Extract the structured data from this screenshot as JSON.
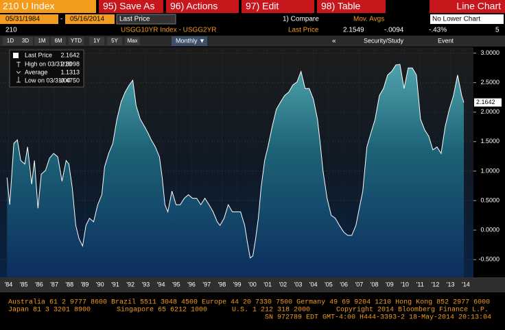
{
  "toolbar": {
    "ticker": "210 U Index",
    "buttons": [
      "95) Save As",
      "96) Actions",
      "97) Edit",
      "98) Table"
    ],
    "chart_type": "Line Chart"
  },
  "controls": {
    "start_date": "05/31/1984",
    "separator": "-",
    "end_date": "05/16/2014",
    "field": "Last Price",
    "compare": "1) Compare",
    "mov_avgs": "Mov. Avgs",
    "lower_chart": "No Lower Chart"
  },
  "status": {
    "id": "210",
    "security": "USGG10YR Index - USGG2YR",
    "field": "Last Price",
    "price": "2.1549",
    "change": "-.0094",
    "pct_change": "-.43%",
    "count": "5"
  },
  "tabs": [
    "1D",
    "3D",
    "1M",
    "6M",
    "YTD",
    "1Y",
    "5Y",
    "Max"
  ],
  "period": "Monthly ▼",
  "tools": [
    "«",
    "Security/Study",
    "Event"
  ],
  "chart_data": {
    "type": "line",
    "x": [
      1984.4,
      1984.58,
      1984.85,
      1985.08,
      1985.3,
      1985.57,
      1985.75,
      1986.02,
      1986.2,
      1986.43,
      1986.65,
      1986.92,
      1987.19,
      1987.46,
      1987.73,
      1988.01,
      1988.28,
      1988.46,
      1988.68,
      1988.91,
      1989.13,
      1989.36,
      1989.58,
      1989.81,
      1990.08,
      1990.35,
      1990.62,
      1990.8,
      1991.07,
      1991.34,
      1991.61,
      1991.88,
      1992.15,
      1992.42,
      1992.65,
      1992.87,
      1993.14,
      1993.41,
      1993.64,
      1993.86,
      1994.13,
      1994.4,
      1994.58,
      1994.76,
      1994.95,
      1995.22,
      1995.49,
      1995.76,
      1996.03,
      1996.3,
      1996.57,
      1996.84,
      1997.11,
      1997.38,
      1997.65,
      1997.92,
      1998.19,
      1998.37,
      1998.64,
      1998.91,
      1999.18,
      1999.45,
      1999.72,
      1999.99,
      2000.17,
      2000.35,
      2000.53,
      2000.71,
      2000.89,
      2001.07,
      2001.3,
      2001.52,
      2001.8,
      2002.07,
      2002.34,
      2002.61,
      2002.88,
      2003.15,
      2003.42,
      2003.69,
      2003.96,
      2004.23,
      2004.5,
      2004.77,
      2004.95,
      2005.13,
      2005.4,
      2005.67,
      2005.94,
      2006.21,
      2006.48,
      2006.75,
      2007.02,
      2007.29,
      2007.56,
      2007.74,
      2008.01,
      2008.28,
      2008.55,
      2008.83,
      2009.1,
      2009.37,
      2009.64,
      2009.91,
      2010.18,
      2010.45,
      2010.72,
      2010.99,
      2011.26,
      2011.53,
      2011.8,
      2012.07,
      2012.34,
      2012.61,
      2012.88,
      2013.15,
      2013.42,
      2013.69,
      2013.96,
      2014.23,
      2014.37
    ],
    "series": [
      {
        "name": "Last Price",
        "color": "#ffffff",
        "values": [
          0.89,
          0.43,
          1.47,
          1.53,
          1.18,
          1.12,
          1.41,
          0.78,
          1.18,
          0.37,
          0.95,
          1.01,
          1.22,
          1.3,
          1.24,
          0.83,
          1.18,
          1.12,
          0.72,
          0.08,
          -0.15,
          -0.27,
          0.08,
          0.2,
          0.14,
          0.43,
          0.6,
          1.07,
          1.3,
          1.47,
          1.88,
          2.17,
          2.34,
          2.46,
          2.54,
          2.11,
          1.88,
          1.76,
          1.65,
          1.53,
          1.41,
          1.24,
          0.89,
          0.43,
          0.31,
          0.66,
          0.43,
          0.43,
          0.54,
          0.6,
          0.54,
          0.54,
          0.43,
          0.54,
          0.43,
          0.31,
          0.14,
          0.08,
          0.2,
          0.43,
          0.31,
          0.31,
          0.31,
          0.08,
          -0.21,
          -0.47,
          -0.44,
          -0.15,
          0.2,
          0.72,
          1.18,
          1.41,
          1.76,
          2.05,
          2.17,
          2.28,
          2.34,
          2.46,
          2.51,
          2.69,
          2.4,
          2.4,
          2.22,
          1.88,
          1.47,
          1.01,
          0.54,
          0.25,
          0.2,
          0.08,
          -0.03,
          -0.09,
          -0.09,
          0.08,
          0.43,
          0.66,
          1.41,
          1.65,
          1.88,
          2.28,
          2.4,
          2.63,
          2.69,
          2.8,
          2.81,
          2.4,
          2.75,
          2.75,
          2.63,
          1.88,
          1.7,
          1.59,
          1.36,
          1.41,
          1.3,
          1.76,
          2.05,
          2.28,
          2.63,
          2.28,
          2.1642
        ],
        "last_label": "2.1642"
      }
    ],
    "stats": [
      {
        "label": "High on 03/31/10",
        "value": "2.8098"
      },
      {
        "label": "Average",
        "value": "1.1313"
      },
      {
        "label": "Low on 03/31/00",
        "value": "-0.4750"
      }
    ],
    "xlim": [
      1984.3,
      2015.0
    ],
    "xticks": [
      {
        "value": 1984.5,
        "label": "'84"
      },
      {
        "value": 1985.5,
        "label": "'85"
      },
      {
        "value": 1986.5,
        "label": "'86"
      },
      {
        "value": 1987.5,
        "label": "'87"
      },
      {
        "value": 1988.5,
        "label": "'88"
      },
      {
        "value": 1989.5,
        "label": "'89"
      },
      {
        "value": 1990.5,
        "label": "'90"
      },
      {
        "value": 1991.5,
        "label": "'91"
      },
      {
        "value": 1992.5,
        "label": "'92"
      },
      {
        "value": 1993.5,
        "label": "'93"
      },
      {
        "value": 1994.5,
        "label": "'94"
      },
      {
        "value": 1995.5,
        "label": "'95"
      },
      {
        "value": 1996.5,
        "label": "'96"
      },
      {
        "value": 1997.5,
        "label": "'97"
      },
      {
        "value": 1998.5,
        "label": "'98"
      },
      {
        "value": 1999.5,
        "label": "'99"
      },
      {
        "value": 2000.5,
        "label": "'00"
      },
      {
        "value": 2001.5,
        "label": "'01"
      },
      {
        "value": 2002.5,
        "label": "'02"
      },
      {
        "value": 2003.5,
        "label": "'03"
      },
      {
        "value": 2004.5,
        "label": "'04"
      },
      {
        "value": 2005.5,
        "label": "'05"
      },
      {
        "value": 2006.5,
        "label": "'06"
      },
      {
        "value": 2007.5,
        "label": "'07"
      },
      {
        "value": 2008.5,
        "label": "'08"
      },
      {
        "value": 2009.5,
        "label": "'09"
      },
      {
        "value": 2010.5,
        "label": "'10"
      },
      {
        "value": 2011.5,
        "label": "'11"
      },
      {
        "value": 2012.5,
        "label": "'12"
      },
      {
        "value": 2013.5,
        "label": "'13"
      },
      {
        "value": 2014.5,
        "label": "'14"
      }
    ],
    "ylim": [
      -0.8,
      3.1
    ],
    "yticks": [
      {
        "value": 3,
        "label": "3.0000"
      },
      {
        "value": 2.5,
        "label": "2.5000"
      },
      {
        "value": 2,
        "label": "2.0000"
      },
      {
        "value": 1.5,
        "label": "1.5000"
      },
      {
        "value": 1,
        "label": "1.0000"
      },
      {
        "value": 0.5,
        "label": "0.5000"
      },
      {
        "value": 0,
        "label": "0.0000"
      },
      {
        "value": -0.5,
        "label": "-0.5000"
      }
    ],
    "grid": true
  },
  "footer": {
    "line1": "Australia 61 2 9777 8600 Brazil 5511 3048 4500 Europe 44 20 7330 7500 Germany 49 69 9204 1210 Hong Kong 852 2977 6000",
    "line2": [
      "Japan 81 3 3201 8900",
      "Singapore 65 6212 1000",
      "U.S. 1 212 318 2000",
      "Copyright 2014 Bloomberg Finance L.P."
    ],
    "line3": "SN 972789 EDT  GMT-4:00 H444-3393-2 18-May-2014 20:13:04"
  }
}
